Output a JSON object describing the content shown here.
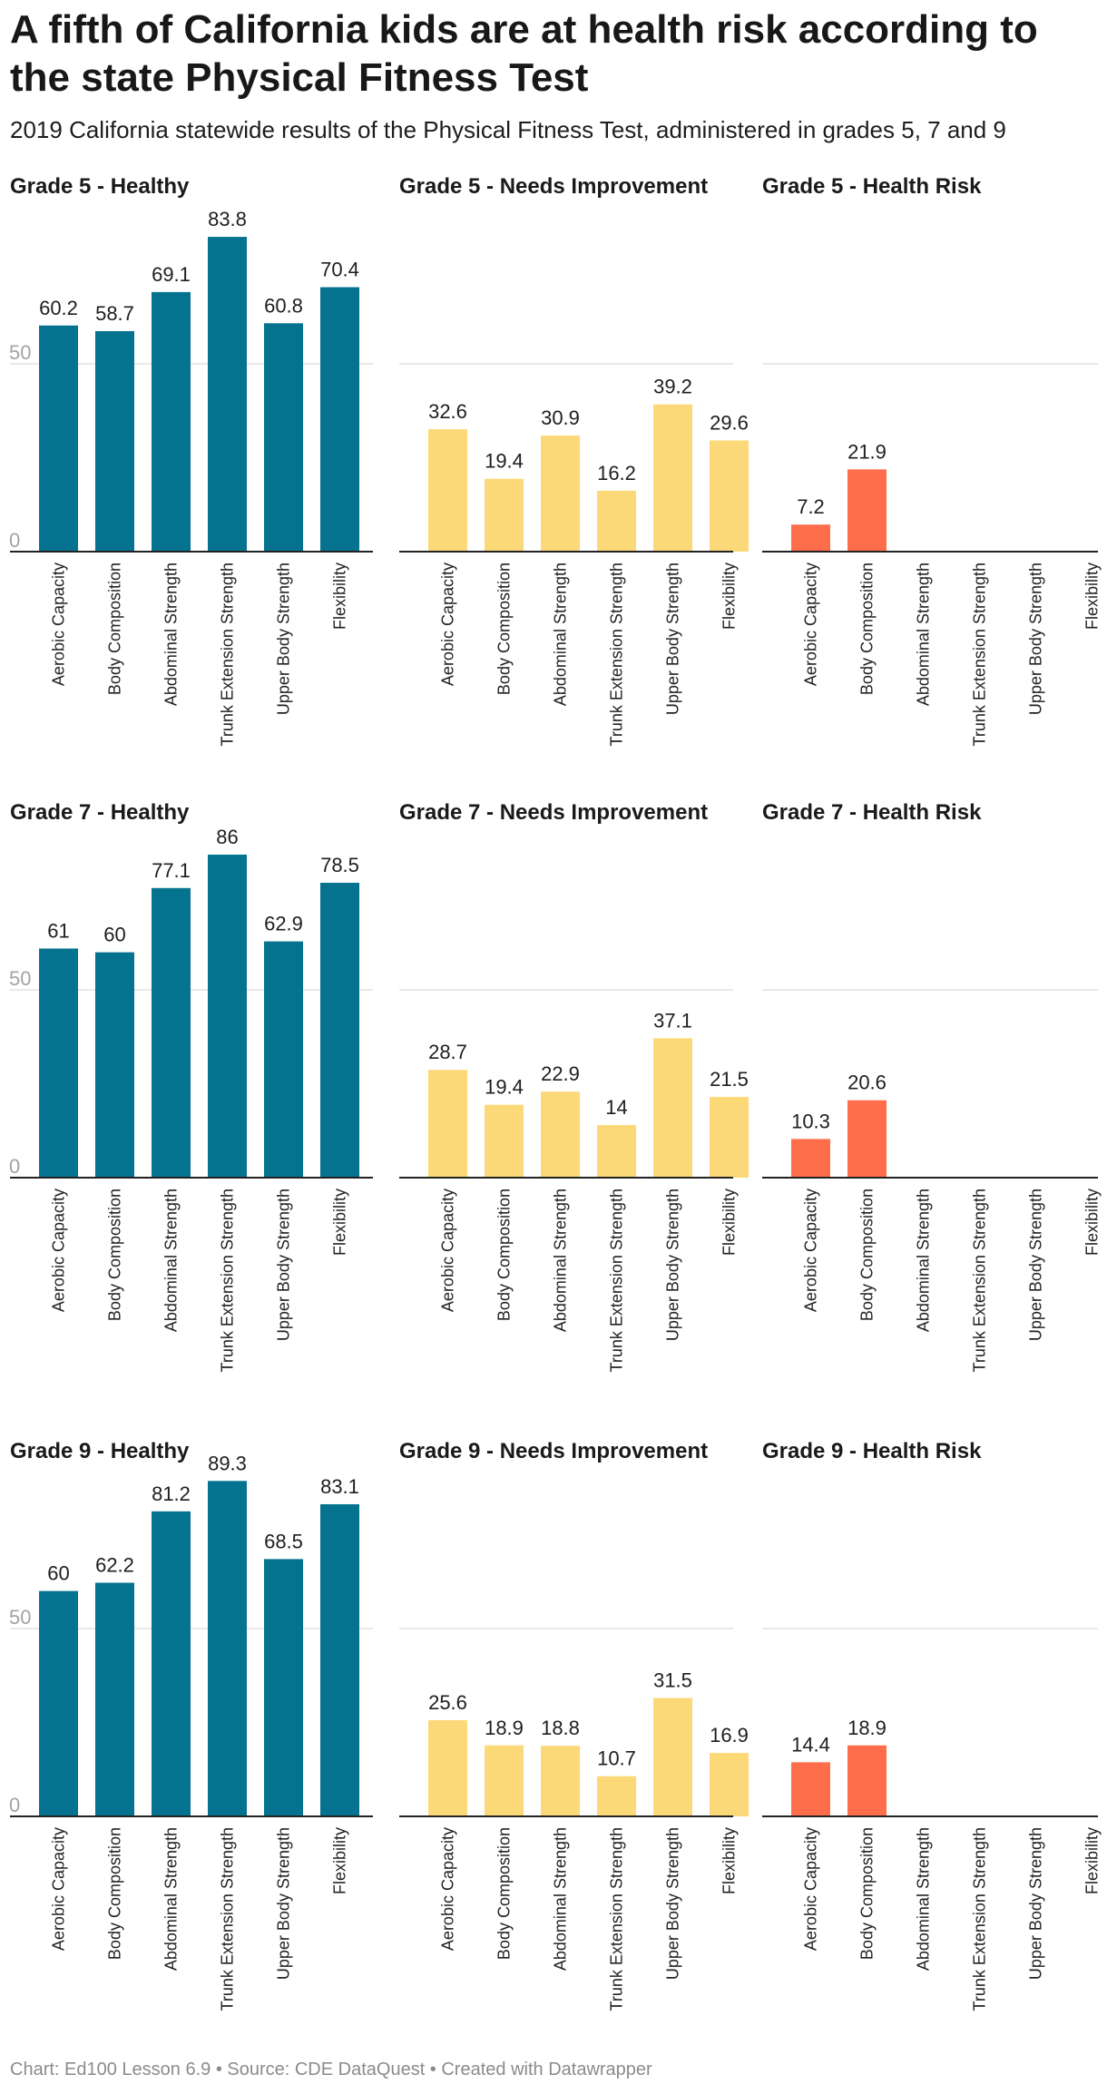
{
  "title": "A fifth of California kids are at health risk according to the state Physical Fitness Test",
  "subtitle": "2019 California statewide results of the Physical Fitness Test, administered in grades 5, 7 and 9",
  "footer": "Chart: Ed100 Lesson 6.9 • Source: CDE DataQuest • Created with Datawrapper",
  "colors": {
    "healthy": "#05738f",
    "needs_improvement": "#fcd978",
    "health_risk": "#ff6e4a"
  },
  "chart_data": [
    {
      "type": "bar",
      "title": "Grade 5 - Healthy",
      "color_key": "healthy",
      "categories": [
        "Aerobic Capacity",
        "Body Composition",
        "Abdominal Strength",
        "Trunk Extension Strength",
        "Upper Body Strength",
        "Flexibility"
      ],
      "values": [
        60.2,
        58.7,
        69.1,
        83.8,
        60.8,
        70.4
      ],
      "ylim": [
        0,
        90
      ],
      "yticks": [
        0,
        50
      ],
      "show_ticks": true
    },
    {
      "type": "bar",
      "title": "Grade 5 - Needs Improvement",
      "color_key": "needs_improvement",
      "categories": [
        "Aerobic Capacity",
        "Body Composition",
        "Abdominal Strength",
        "Trunk Extension Strength",
        "Upper Body Strength",
        "Flexibility"
      ],
      "values": [
        32.6,
        19.4,
        30.9,
        16.2,
        39.2,
        29.6
      ],
      "ylim": [
        0,
        90
      ],
      "yticks": [
        0,
        50
      ],
      "show_ticks": false
    },
    {
      "type": "bar",
      "title": "Grade 5 - Health Risk",
      "color_key": "health_risk",
      "categories": [
        "Aerobic Capacity",
        "Body Composition",
        "Abdominal Strength",
        "Trunk Extension Strength",
        "Upper Body Strength",
        "Flexibility"
      ],
      "values": [
        7.2,
        21.9,
        null,
        null,
        null,
        null
      ],
      "ylim": [
        0,
        90
      ],
      "yticks": [
        0,
        50
      ],
      "show_ticks": false
    },
    {
      "type": "bar",
      "title": "Grade 7 - Healthy",
      "color_key": "healthy",
      "categories": [
        "Aerobic Capacity",
        "Body Composition",
        "Abdominal Strength",
        "Trunk Extension Strength",
        "Upper Body Strength",
        "Flexibility"
      ],
      "values": [
        61,
        60,
        77.1,
        86,
        62.9,
        78.5
      ],
      "ylim": [
        0,
        90
      ],
      "yticks": [
        0,
        50
      ],
      "show_ticks": true
    },
    {
      "type": "bar",
      "title": "Grade 7 - Needs Improvement",
      "color_key": "needs_improvement",
      "categories": [
        "Aerobic Capacity",
        "Body Composition",
        "Abdominal Strength",
        "Trunk Extension Strength",
        "Upper Body Strength",
        "Flexibility"
      ],
      "values": [
        28.7,
        19.4,
        22.9,
        14,
        37.1,
        21.5
      ],
      "ylim": [
        0,
        90
      ],
      "yticks": [
        0,
        50
      ],
      "show_ticks": false
    },
    {
      "type": "bar",
      "title": "Grade 7 - Health Risk",
      "color_key": "health_risk",
      "categories": [
        "Aerobic Capacity",
        "Body Composition",
        "Abdominal Strength",
        "Trunk Extension Strength",
        "Upper Body Strength",
        "Flexibility"
      ],
      "values": [
        10.3,
        20.6,
        null,
        null,
        null,
        null
      ],
      "ylim": [
        0,
        90
      ],
      "yticks": [
        0,
        50
      ],
      "show_ticks": false
    },
    {
      "type": "bar",
      "title": "Grade 9 - Healthy",
      "color_key": "healthy",
      "categories": [
        "Aerobic Capacity",
        "Body Composition",
        "Abdominal Strength",
        "Trunk Extension Strength",
        "Upper Body Strength",
        "Flexibility"
      ],
      "values": [
        60,
        62.2,
        81.2,
        89.3,
        68.5,
        83.1
      ],
      "ylim": [
        0,
        90
      ],
      "yticks": [
        0,
        50
      ],
      "show_ticks": true
    },
    {
      "type": "bar",
      "title": "Grade 9 - Needs Improvement",
      "color_key": "needs_improvement",
      "categories": [
        "Aerobic Capacity",
        "Body Composition",
        "Abdominal Strength",
        "Trunk Extension Strength",
        "Upper Body Strength",
        "Flexibility"
      ],
      "values": [
        25.6,
        18.9,
        18.8,
        10.7,
        31.5,
        16.9
      ],
      "ylim": [
        0,
        90
      ],
      "yticks": [
        0,
        50
      ],
      "show_ticks": false
    },
    {
      "type": "bar",
      "title": "Grade 9 - Health Risk",
      "color_key": "health_risk",
      "categories": [
        "Aerobic Capacity",
        "Body Composition",
        "Abdominal Strength",
        "Trunk Extension Strength",
        "Upper Body Strength",
        "Flexibility"
      ],
      "values": [
        14.4,
        18.9,
        null,
        null,
        null,
        null
      ],
      "ylim": [
        0,
        90
      ],
      "yticks": [
        0,
        50
      ],
      "show_ticks": false
    }
  ]
}
